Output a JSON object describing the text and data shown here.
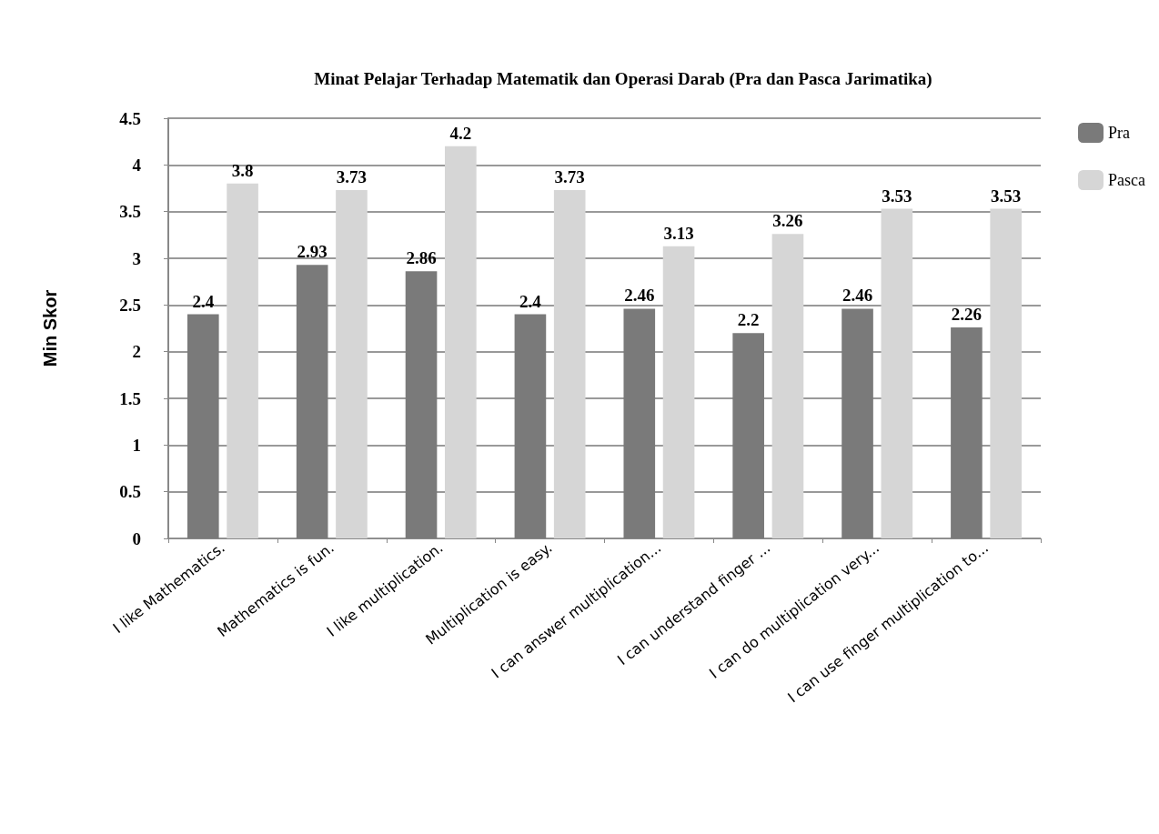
{
  "chart_data": {
    "type": "bar",
    "title": "Minat Pelajar Terhadap Matematik dan Operasi Darab (Pra dan Pasca Jarimatika)",
    "ylabel": "Min Skor",
    "categories": [
      "I like Mathematics.",
      "Mathematics is fun.",
      "I like multiplication.",
      "Multiplication is easy.",
      "I can answer multiplication...",
      "I can understand finger ...",
      "I can do multiplication very...",
      "I can use finger multiplication to..."
    ],
    "series": [
      {
        "name": "Pra",
        "color": "#7a7a7a",
        "values": [
          2.4,
          2.93,
          2.86,
          2.4,
          2.46,
          2.2,
          2.46,
          2.26
        ]
      },
      {
        "name": "Pasca",
        "color": "#d6d6d6",
        "values": [
          3.8,
          3.73,
          4.2,
          3.73,
          3.13,
          3.26,
          3.53,
          3.53
        ]
      }
    ],
    "ylim": [
      0,
      4.5
    ],
    "yticks": [
      0,
      0.5,
      1,
      1.5,
      2,
      2.5,
      3,
      3.5,
      4,
      4.5
    ],
    "grid": "y",
    "legend": "top right",
    "data_labels": true
  }
}
